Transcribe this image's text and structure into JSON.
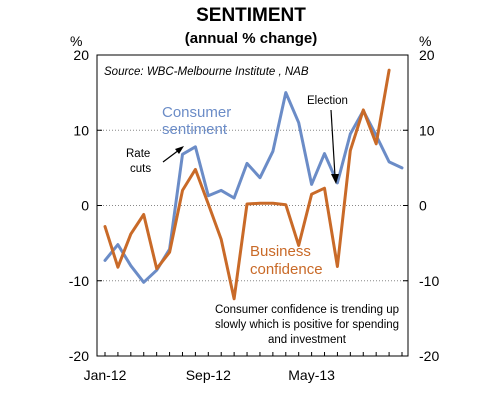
{
  "chart_data": {
    "type": "line",
    "title": "SENTIMENT",
    "subtitle": "(annual % change)",
    "ylabel_left": "%",
    "ylabel_right": "%",
    "source": "Source: WBC-Melbourne Institute , NAB",
    "ylim": [
      -20,
      20
    ],
    "yticks": [
      20,
      10,
      0,
      -10,
      -20
    ],
    "x_tick_labels": [
      "Jan-12",
      "Sep-12",
      "May-13"
    ],
    "x_tick_index": [
      0,
      8,
      16
    ],
    "grid": "dotted horizontal",
    "series": [
      {
        "name": "Consumer sentiment",
        "color": "#6b8cc7",
        "values": [
          -7.3,
          -5.2,
          -8.0,
          -10.2,
          -8.6,
          -5.8,
          6.8,
          7.8,
          1.3,
          2.0,
          1.0,
          5.6,
          3.7,
          7.2,
          15.0,
          11.0,
          2.8,
          6.9,
          3.0,
          9.5,
          12.6,
          9.3,
          5.8,
          5.0
        ]
      },
      {
        "name": "Business confidence",
        "color": "#c96a28",
        "values": [
          -2.8,
          -8.2,
          -3.8,
          -1.2,
          -8.4,
          -6.2,
          2.0,
          4.8,
          0.2,
          -4.5,
          -12.4,
          0.2,
          0.3,
          0.3,
          0.1,
          -5.3,
          1.5,
          2.3,
          -8.1,
          7.3,
          12.7,
          8.2,
          18.0
        ]
      }
    ],
    "annotations": {
      "consumer_label": [
        "Consumer",
        "sentiment"
      ],
      "business_label": [
        "Business",
        "confidence"
      ],
      "rate_cuts": [
        "Rate",
        "cuts"
      ],
      "election": "Election",
      "note": [
        "Consumer confidence is trending up",
        "slowly which is positive for spending",
        "and investment"
      ]
    }
  }
}
